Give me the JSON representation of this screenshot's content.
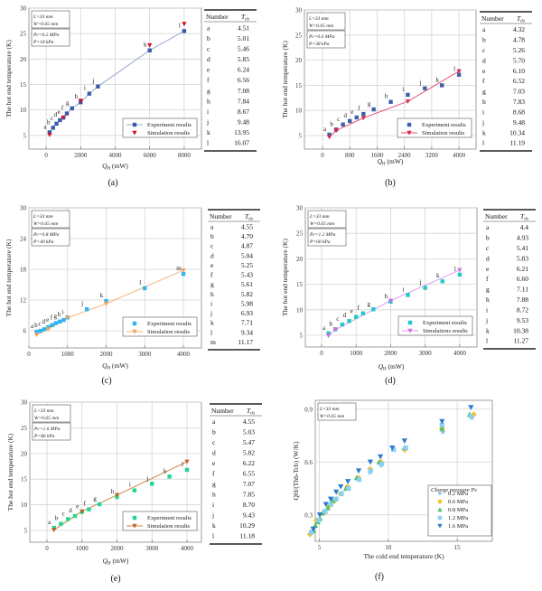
{
  "chart_data": [
    {
      "id": "a",
      "type": "scatter",
      "caption": "(a)",
      "xlabel": [
        {
          "t": "Q",
          "i": true
        },
        {
          "t": "H",
          "sub": true
        },
        {
          "t": " (mW)"
        }
      ],
      "ylabel": "The hot end temperature (K)",
      "xticks": [
        0,
        2000,
        4000,
        6000,
        8000
      ],
      "yticks": [
        5,
        10,
        15,
        20,
        25,
        30
      ],
      "xlim": [
        -1000,
        9000
      ],
      "ylim": [
        2.3,
        30
      ],
      "grid": true,
      "annotations": [
        [
          "L=33 mm",
          "W=0.65 mm"
        ],
        [
          "Pc=0.2 MPa",
          "P=18 kPa"
        ]
      ],
      "legend_position": "bottom-right",
      "series": [
        {
          "name": "Experiment results",
          "marker": "square",
          "color": "#3b5ba5",
          "line": true,
          "line_color": "#9aa8d0",
          "x": [
            200,
            400,
            600,
            800,
            1000,
            1200,
            1500,
            2000,
            2500,
            3000,
            6000,
            8000
          ],
          "y": [
            5.6,
            6.5,
            7.3,
            8.0,
            8.5,
            9.3,
            10.3,
            11.5,
            13.2,
            14.6,
            21.7,
            25.5
          ],
          "labels": [
            "a",
            "b",
            "c",
            "d",
            "e",
            "f",
            "g",
            "h",
            "i",
            "j",
            "k",
            "l"
          ]
        },
        {
          "name": "Simulation results",
          "marker": "tri-down",
          "color": "#d0102a",
          "line": false,
          "x": [
            200,
            1000,
            2000,
            6000,
            8000
          ],
          "y": [
            5.1,
            8.5,
            11.8,
            22.7,
            26.9
          ]
        }
      ],
      "table": {
        "headers": [
          "Number",
          "T",
          "cb"
        ],
        "rows": [
          [
            "a",
            "4.51"
          ],
          [
            "b",
            "5.01"
          ],
          [
            "c",
            "5.46"
          ],
          [
            "d",
            "5.85"
          ],
          [
            "e",
            "6.24"
          ],
          [
            "f",
            "6.56"
          ],
          [
            "g",
            "7.08"
          ],
          [
            "h",
            "7.84"
          ],
          [
            "i",
            "8.67"
          ],
          [
            "j",
            "9.48"
          ],
          [
            "k",
            "13.95"
          ],
          [
            "l",
            "16.07"
          ]
        ]
      }
    },
    {
      "id": "b",
      "type": "scatter",
      "caption": "(b)",
      "xlabel": [
        {
          "t": "Q",
          "i": true
        },
        {
          "t": "H",
          "sub": true
        },
        {
          "t": " (mW)"
        }
      ],
      "ylabel": "The hot end temperature (K)",
      "xticks": [
        0,
        800,
        1600,
        2400,
        3200,
        4000
      ],
      "yticks": [
        5,
        10,
        15,
        20,
        25,
        30
      ],
      "xlim": [
        -530,
        4500
      ],
      "ylim": [
        2.3,
        30
      ],
      "grid": true,
      "annotations": [
        [
          "L=33 mm",
          "W=0.65 mm"
        ],
        [
          "Pc=0.6 MPa",
          "P=38 kPa"
        ]
      ],
      "legend_position": "bottom-right",
      "series": [
        {
          "name": "Experiment results",
          "marker": "square",
          "color": "#3a63a8",
          "line": false,
          "x": [
            200,
            400,
            600,
            800,
            1000,
            1200,
            1500,
            2000,
            2500,
            3000,
            3500,
            4000
          ],
          "y": [
            5.2,
            6.2,
            7.2,
            7.9,
            8.6,
            9.3,
            10.2,
            11.7,
            13.1,
            14.4,
            15.0,
            17.1
          ],
          "labels": [
            "a",
            "b",
            "c",
            "d",
            "e",
            "f",
            "g",
            "h",
            "i",
            "j",
            "k",
            "l"
          ]
        },
        {
          "name": "Simulation results",
          "marker": "tri-down",
          "color": "#d8284a",
          "line": true,
          "line_color": "#e8507a",
          "x": [
            200,
            400,
            1200,
            2500,
            4000
          ],
          "y": [
            4.7,
            6.0,
            8.5,
            11.8,
            17.8
          ]
        }
      ],
      "table": {
        "headers": [
          "Number",
          "T",
          "cb"
        ],
        "rows": [
          [
            "a",
            "4.32"
          ],
          [
            "b",
            "4.78"
          ],
          [
            "c",
            "5.26"
          ],
          [
            "d",
            "5.70"
          ],
          [
            "e",
            "6.10"
          ],
          [
            "f",
            "6.52"
          ],
          [
            "g",
            "7.03"
          ],
          [
            "h",
            "7.83"
          ],
          [
            "i",
            "8.68"
          ],
          [
            "j",
            "9.48"
          ],
          [
            "k",
            "10.34"
          ],
          [
            "l",
            "11.19"
          ]
        ]
      }
    },
    {
      "id": "c",
      "type": "scatter",
      "caption": "(c)",
      "xlabel": [
        {
          "t": "Q",
          "i": true
        },
        {
          "t": "H",
          "sub": true
        },
        {
          "t": " (mW)"
        }
      ],
      "ylabel": "The hot end temperature (K)",
      "xticks": [
        0,
        1000,
        2000,
        3000,
        4000
      ],
      "yticks": [
        6,
        12,
        18,
        24,
        30
      ],
      "xlim": [
        0,
        4467
      ],
      "ylim": [
        2.65,
        30
      ],
      "grid": true,
      "annotations": [
        [
          "L=33 mm",
          "W=0.65 mm"
        ],
        [
          "Pc=0.8 MPa",
          "P=40 kPa"
        ]
      ],
      "legend_position": "bottom-right",
      "series": [
        {
          "name": "Experiment results",
          "marker": "square",
          "color": "#2cb5f0",
          "line": false,
          "x": [
            200,
            300,
            400,
            500,
            600,
            700,
            800,
            900,
            1000,
            1500,
            2000,
            3000,
            4000
          ],
          "y": [
            5.8,
            6.0,
            6.3,
            6.7,
            7.1,
            7.5,
            7.8,
            8.1,
            8.6,
            10.2,
            11.8,
            14.3,
            17.1
          ],
          "labels": [
            "a",
            "b",
            "c",
            "d",
            "e",
            "f",
            "g",
            "h",
            "i",
            "j",
            "k",
            "l",
            "m"
          ]
        },
        {
          "name": "Simulation results",
          "marker": "tri-down",
          "color": "#f5a05a",
          "line": true,
          "line_color": "#f8b47a",
          "x": [
            200,
            500,
            1000,
            2000,
            4000
          ],
          "y": [
            5.2,
            6.3,
            8.5,
            11.3,
            17.8
          ]
        }
      ],
      "table": {
        "headers": [
          "Number",
          "T",
          "cb"
        ],
        "rows": [
          [
            "a",
            "4.55"
          ],
          [
            "b",
            "4.70"
          ],
          [
            "c",
            "4.87"
          ],
          [
            "d",
            "5.04"
          ],
          [
            "e",
            "5.25"
          ],
          [
            "f",
            "5.43"
          ],
          [
            "g",
            "5.61"
          ],
          [
            "h",
            "5.82"
          ],
          [
            "i",
            "5.98"
          ],
          [
            "j",
            "6.93"
          ],
          [
            "k",
            "7.71"
          ],
          [
            "l",
            "9.34"
          ],
          [
            "m",
            "11.17"
          ]
        ]
      }
    },
    {
      "id": "d",
      "type": "scatter",
      "caption": "(d)",
      "xlabel": [
        {
          "t": "Q",
          "i": true
        },
        {
          "t": "H",
          "sub": true
        },
        {
          "t": " (mW)"
        }
      ],
      "ylabel": "The hot end temperature (K)",
      "xticks": [
        0,
        1000,
        2000,
        3000,
        4000
      ],
      "yticks": [
        5,
        10,
        15,
        20,
        25,
        30
      ],
      "xlim": [
        -470,
        4500
      ],
      "ylim": [
        2.7,
        30
      ],
      "grid": true,
      "annotations": [
        [
          "L=33 mm",
          "W=0.65 mm"
        ],
        [
          "Pc=1.2 MPa",
          "P=60 kPa"
        ]
      ],
      "legend_position": "bottom-right",
      "series": [
        {
          "name": "Experiment results",
          "marker": "square",
          "color": "#20c8c8",
          "line": false,
          "x": [
            200,
            400,
            600,
            800,
            1000,
            1200,
            1500,
            2000,
            2500,
            3000,
            3500,
            4000
          ],
          "y": [
            5.4,
            6.2,
            7.1,
            7.8,
            8.6,
            9.3,
            10.1,
            11.6,
            12.9,
            14.3,
            15.6,
            16.9
          ],
          "labels": [
            "a",
            "b",
            "c",
            "d",
            "e",
            "f",
            "g",
            "h",
            "i",
            "j",
            "k",
            "l"
          ]
        },
        {
          "name": "Simulations results",
          "marker": "tri-down",
          "color": "#d070e0",
          "line": true,
          "line_color": "#dc98ec",
          "x": [
            200,
            400,
            2000,
            4000
          ],
          "y": [
            4.9,
            6.1,
            11.8,
            17.8
          ]
        }
      ],
      "table": {
        "headers": [
          "Number",
          "T",
          "cb"
        ],
        "rows": [
          [
            "a",
            "4.4"
          ],
          [
            "b",
            "4.93"
          ],
          [
            "c",
            "5.41"
          ],
          [
            "d",
            "5.83"
          ],
          [
            "e",
            "6.21"
          ],
          [
            "f",
            "6.60"
          ],
          [
            "g",
            "7.11"
          ],
          [
            "h",
            "7.88"
          ],
          [
            "i",
            "8.72"
          ],
          [
            "j",
            "9.53"
          ],
          [
            "k",
            "10.38"
          ],
          [
            "l",
            "11.27"
          ]
        ]
      }
    },
    {
      "id": "e",
      "type": "scatter",
      "caption": "(e)",
      "xlabel": [
        {
          "t": "Q",
          "i": true
        },
        {
          "t": "H",
          "sub": true
        },
        {
          "t": " (mW)"
        }
      ],
      "ylabel": "The hot end temperature (K)",
      "xticks": [
        0,
        1000,
        2000,
        3000,
        4000
      ],
      "yticks": [
        5,
        10,
        15,
        20,
        25,
        30
      ],
      "xlim": [
        -490,
        4413
      ],
      "ylim": [
        2.7,
        30
      ],
      "grid": true,
      "annotations": [
        [
          "L=33 mm",
          "W=0.65 mm"
        ],
        [
          "Pc=1.6 MPa",
          "P=86 kPa"
        ]
      ],
      "legend_position": "bottom-right",
      "series": [
        {
          "name": "Experiment results",
          "marker": "square",
          "color": "#20d890",
          "line": false,
          "x": [
            200,
            400,
            600,
            800,
            1000,
            1200,
            1500,
            2000,
            2500,
            3000,
            3500,
            4000
          ],
          "y": [
            5.5,
            6.3,
            7.2,
            7.8,
            8.6,
            9.1,
            10.1,
            11.5,
            12.8,
            14.1,
            15.5,
            16.8
          ],
          "labels": [
            "a",
            "b",
            "c",
            "d",
            "e",
            "f",
            "g",
            "h",
            "i",
            "j",
            "k",
            "l"
          ]
        },
        {
          "name": "Simulation results",
          "marker": "tri-down",
          "color": "#c0602a",
          "line": true,
          "line_color": "#d0804a",
          "x": [
            200,
            1000,
            2000,
            4000
          ],
          "y": [
            5.1,
            8.7,
            11.9,
            18.4
          ]
        }
      ],
      "table": {
        "headers": [
          "Number",
          "T",
          "cb"
        ],
        "rows": [
          [
            "a",
            "4.55"
          ],
          [
            "b",
            "5.03"
          ],
          [
            "c",
            "5.47"
          ],
          [
            "d",
            "5.82"
          ],
          [
            "e",
            "6.22"
          ],
          [
            "f",
            "6.55"
          ],
          [
            "g",
            "7.07"
          ],
          [
            "h",
            "7.85"
          ],
          [
            "i",
            "8.70"
          ],
          [
            "j",
            "9.43"
          ],
          [
            "k",
            "10.29"
          ],
          [
            "l",
            "11.18"
          ]
        ]
      }
    },
    {
      "id": "f",
      "type": "scatter",
      "caption": "(f)",
      "xlabel": [
        {
          "t": "The cold end temperature (K)"
        }
      ],
      "ylabel": "QH/(Thb-Tcb) (W/K)",
      "xticks": [
        5,
        10,
        15
      ],
      "yticks": [
        0.3,
        0.6,
        0.9
      ],
      "xlim": [
        4.7,
        17.55
      ],
      "ylim": [
        0.15,
        0.95
      ],
      "grid": true,
      "annotations": [
        [
          "L=33 mm",
          "W=0.65 mm"
        ]
      ],
      "legend_position": "bottom-right",
      "legend_title": "Charge pressure Pc",
      "series": [
        {
          "name": "0.2 MPa",
          "marker": "star",
          "color": "#7ab8f0",
          "line": false,
          "x": [
            4.51,
            5.01,
            5.46,
            5.85,
            6.24,
            6.56,
            7.08,
            7.84,
            8.67,
            9.48,
            13.95,
            16.07
          ],
          "y": [
            0.21,
            0.27,
            0.32,
            0.36,
            0.39,
            0.42,
            0.45,
            0.5,
            0.54,
            0.58,
            0.77,
            0.85
          ]
        },
        {
          "name": "0.6 MPa",
          "marker": "diamond",
          "color": "#f8c020",
          "line": false,
          "x": [
            4.32,
            4.78,
            5.26,
            5.7,
            6.1,
            6.52,
            7.03,
            7.83,
            8.68,
            9.48,
            11.19,
            13.9,
            16.2
          ],
          "y": [
            0.19,
            0.27,
            0.31,
            0.35,
            0.38,
            0.42,
            0.46,
            0.51,
            0.56,
            0.6,
            0.67,
            0.79,
            0.87
          ]
        },
        {
          "name": "0.8 MPa",
          "marker": "tri-up",
          "color": "#50c060",
          "line": false,
          "x": [
            4.55,
            4.7,
            4.87,
            5.04,
            5.25,
            5.43,
            5.61,
            5.82,
            5.98,
            6.93,
            7.71,
            9.34,
            11.17,
            13.9,
            15.9
          ],
          "y": [
            0.21,
            0.24,
            0.26,
            0.28,
            0.31,
            0.32,
            0.34,
            0.36,
            0.38,
            0.45,
            0.51,
            0.6,
            0.68,
            0.79,
            0.87
          ]
        },
        {
          "name": "1.2 MPa",
          "marker": "square",
          "color": "#8ad0f0",
          "line": false,
          "x": [
            4.4,
            4.93,
            5.41,
            5.83,
            6.21,
            6.6,
            7.11,
            7.88,
            8.72,
            9.53,
            10.38,
            11.27,
            13.9,
            16.0
          ],
          "y": [
            0.2,
            0.27,
            0.32,
            0.36,
            0.39,
            0.42,
            0.45,
            0.5,
            0.55,
            0.59,
            0.67,
            0.68,
            0.81,
            0.86
          ]
        },
        {
          "name": "1.6 MPa",
          "marker": "tri-down",
          "color": "#2a7ad0",
          "line": false,
          "x": [
            4.55,
            5.03,
            5.47,
            5.82,
            6.22,
            6.55,
            7.07,
            7.85,
            8.7,
            9.43,
            10.29,
            11.18,
            13.9,
            16.0
          ],
          "y": [
            0.22,
            0.3,
            0.36,
            0.39,
            0.43,
            0.46,
            0.49,
            0.55,
            0.6,
            0.63,
            0.68,
            0.72,
            0.83,
            0.91
          ]
        }
      ]
    }
  ]
}
